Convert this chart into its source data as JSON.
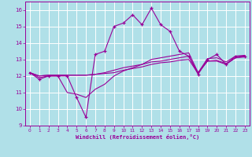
{
  "xlabel": "Windchill (Refroidissement éolien,°C)",
  "background_color": "#b0e0e8",
  "grid_color": "#ffffff",
  "line_color": "#990099",
  "xlim": [
    -0.5,
    23.5
  ],
  "ylim": [
    9,
    16.5
  ],
  "yticks": [
    9,
    10,
    11,
    12,
    13,
    14,
    15,
    16
  ],
  "xticks": [
    0,
    1,
    2,
    3,
    4,
    5,
    6,
    7,
    8,
    9,
    10,
    11,
    12,
    13,
    14,
    15,
    16,
    17,
    18,
    19,
    20,
    21,
    22,
    23
  ],
  "line1_x": [
    0,
    1,
    2,
    3,
    4,
    5,
    6,
    7,
    8,
    9,
    10,
    11,
    12,
    13,
    14,
    15,
    16,
    17,
    18,
    19,
    20,
    21,
    22,
    23
  ],
  "line1_y": [
    12.2,
    11.8,
    12.0,
    12.0,
    12.0,
    10.7,
    9.5,
    13.3,
    13.5,
    15.0,
    15.2,
    15.7,
    15.1,
    16.1,
    15.1,
    14.7,
    13.5,
    13.2,
    12.1,
    13.0,
    13.3,
    12.7,
    13.2,
    13.2
  ],
  "line2_x": [
    0,
    1,
    2,
    3,
    4,
    5,
    6,
    7,
    8,
    9,
    10,
    11,
    12,
    13,
    14,
    15,
    16,
    17,
    18,
    19,
    20,
    21,
    22,
    23
  ],
  "line2_y": [
    12.2,
    11.9,
    12.0,
    12.0,
    11.0,
    10.9,
    10.7,
    11.2,
    11.5,
    12.0,
    12.3,
    12.5,
    12.7,
    13.0,
    13.1,
    13.2,
    13.3,
    13.4,
    12.2,
    12.9,
    12.9,
    12.7,
    13.1,
    13.2
  ],
  "line3_x": [
    0,
    1,
    2,
    3,
    4,
    5,
    6,
    7,
    8,
    9,
    10,
    11,
    12,
    13,
    14,
    15,
    16,
    17,
    18,
    19,
    20,
    21,
    22,
    23
  ],
  "line3_y": [
    12.2,
    12.0,
    12.05,
    12.05,
    12.05,
    12.05,
    12.05,
    12.1,
    12.15,
    12.2,
    12.35,
    12.45,
    12.55,
    12.7,
    12.8,
    12.85,
    12.95,
    13.0,
    12.15,
    12.9,
    12.95,
    12.75,
    13.1,
    13.15
  ],
  "line4_x": [
    0,
    1,
    2,
    3,
    4,
    5,
    6,
    7,
    8,
    9,
    10,
    11,
    12,
    13,
    14,
    15,
    16,
    17,
    18,
    19,
    20,
    21,
    22,
    23
  ],
  "line4_y": [
    12.2,
    12.0,
    12.05,
    12.05,
    12.05,
    12.05,
    12.05,
    12.1,
    12.2,
    12.35,
    12.5,
    12.6,
    12.7,
    12.85,
    12.9,
    13.0,
    13.1,
    13.2,
    12.2,
    13.05,
    13.1,
    12.85,
    13.2,
    13.25
  ]
}
